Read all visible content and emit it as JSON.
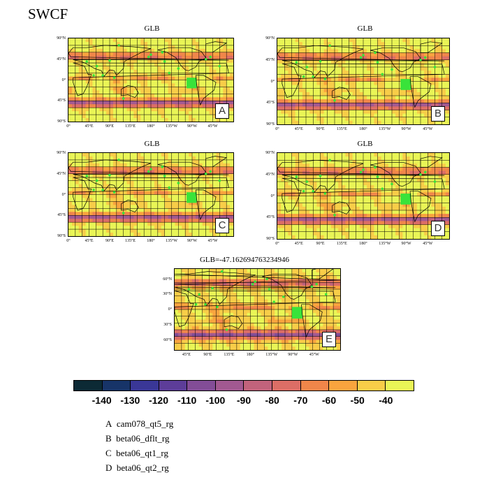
{
  "figure": {
    "title": "SWCF"
  },
  "chart_data": {
    "type": "heatmap",
    "variable": "SWCF",
    "colorbar": {
      "colors": [
        "#0c2a35",
        "#173468",
        "#3a3797",
        "#5d3d99",
        "#834d97",
        "#a25991",
        "#c2637c",
        "#dc6e66",
        "#f0864a",
        "#f9a43e",
        "#f8cd48",
        "#e9f556"
      ],
      "tick_labels": [
        "-140",
        "-130",
        "-120",
        "-110",
        "-100",
        "-90",
        "-80",
        "-70",
        "-60",
        "-50",
        "-40"
      ]
    },
    "panels": [
      {
        "id": "A",
        "title": "GLB",
        "letter": "A",
        "lat_ticks": [
          "90°N",
          "45°N",
          "0°",
          "45°S",
          "90°S"
        ],
        "lon_ticks": [
          "0°",
          "45°E",
          "90°E",
          "135°E",
          "180°",
          "135°W",
          "90°W",
          "45°W"
        ]
      },
      {
        "id": "B",
        "title": "GLB",
        "letter": "B",
        "lat_ticks": [
          "90°N",
          "45°N",
          "0°",
          "45°S",
          "90°S"
        ],
        "lon_ticks": [
          "0°",
          "45°E",
          "90°E",
          "135°E",
          "180°",
          "135°W",
          "90°W",
          "45°W"
        ]
      },
      {
        "id": "C",
        "title": "GLB",
        "letter": "C",
        "lat_ticks": [
          "90°N",
          "45°N",
          "0°",
          "45°S",
          "90°S"
        ],
        "lon_ticks": [
          "0°",
          "45°E",
          "90°E",
          "135°E",
          "180°",
          "135°W",
          "90°W",
          "45°W"
        ]
      },
      {
        "id": "D",
        "title": "GLB",
        "letter": "D",
        "lat_ticks": [
          "90°N",
          "45°N",
          "0°",
          "45°S",
          "90°S"
        ],
        "lon_ticks": [
          "0°",
          "45°E",
          "90°E",
          "135°E",
          "180°",
          "135°W",
          "90°W",
          "45°W"
        ]
      },
      {
        "id": "E",
        "title": "GLB=-47.162694763234946",
        "letter": "E",
        "lat_ticks": [
          "60°N",
          "30°N",
          "0°",
          "30°S",
          "60°S"
        ],
        "lon_ticks": [
          "45°E",
          "90°E",
          "135°E",
          "180°",
          "135°W",
          "90°W",
          "45°W"
        ]
      }
    ]
  },
  "legend": [
    {
      "key": "A",
      "label": "cam078_qt5_rg"
    },
    {
      "key": "B",
      "label": "beta06_dflt_rg"
    },
    {
      "key": "C",
      "label": "beta06_qt1_rg"
    },
    {
      "key": "D",
      "label": "beta06_qt2_rg"
    }
  ]
}
